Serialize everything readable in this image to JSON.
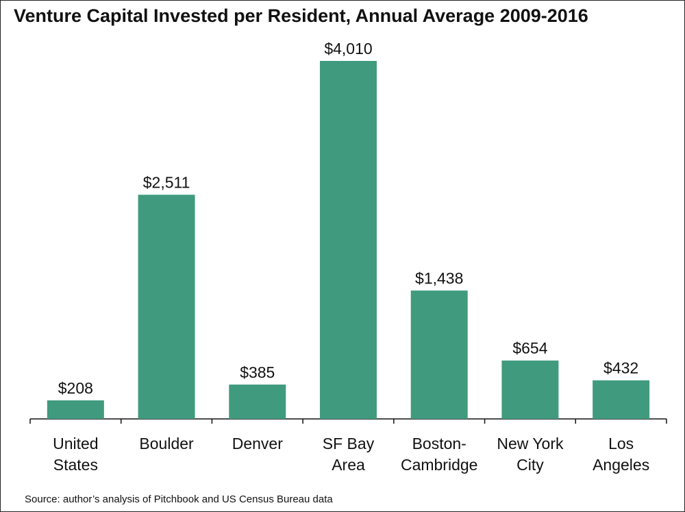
{
  "chart_data": {
    "type": "bar",
    "title": "Venture Capital Invested per Resident, Annual Average 2009-2016",
    "categories": [
      [
        "United",
        "States"
      ],
      [
        "Boulder"
      ],
      [
        "Denver"
      ],
      [
        "SF Bay",
        "Area"
      ],
      [
        "Boston-",
        "Cambridge"
      ],
      [
        "New York",
        "City"
      ],
      [
        "Los",
        "Angeles"
      ]
    ],
    "values": [
      208,
      2511,
      385,
      4010,
      1438,
      654,
      432
    ],
    "data_labels": [
      "$208",
      "$2,511",
      "$385",
      "$4,010",
      "$1,438",
      "$654",
      "$432"
    ],
    "xlabel": "",
    "ylabel": "",
    "ylim": [
      0,
      4010
    ],
    "grid": false,
    "legend": "none",
    "bar_color": "#409B7E",
    "source": "Source: author’s analysis of Pitchbook and US Census Bureau data"
  }
}
